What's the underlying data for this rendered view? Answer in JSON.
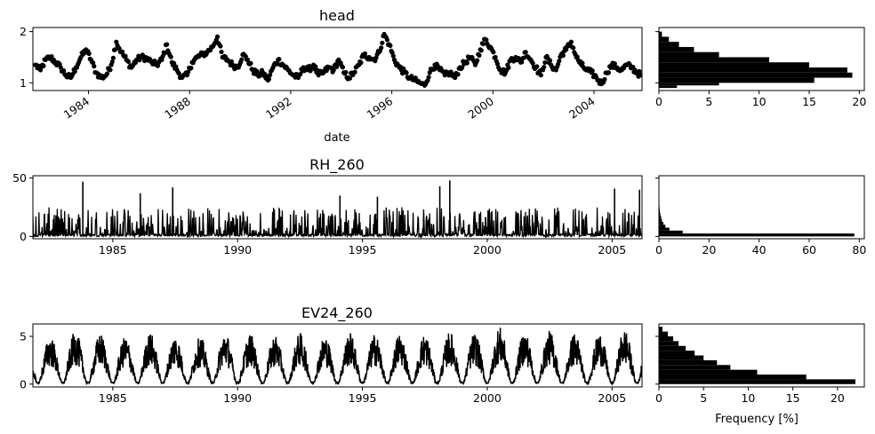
{
  "figure": {
    "axis_color": "#000000",
    "data_color": "#000000",
    "background": "#ffffff"
  },
  "chart_data": [
    {
      "type": "scatter",
      "title": "head",
      "xlabel": "date",
      "ylabel": "",
      "x_unit": "year",
      "xlim": [
        1981.8,
        2005.9
      ],
      "ylim": [
        0.85,
        2.08
      ],
      "xticks": [
        1984,
        1988,
        1992,
        1996,
        2000,
        2004
      ],
      "xtick_labels": [
        "1984",
        "1988",
        "1992",
        "1996",
        "2000",
        "2004"
      ],
      "xtick_rotation": 35,
      "yticks": [
        1,
        2
      ],
      "ytick_labels": [
        "1",
        "2"
      ],
      "marker": "circle",
      "series": [
        {
          "x": [
            1981.9,
            1982.1,
            1982.3,
            1982.5,
            1982.7,
            1982.9,
            1983.1,
            1983.3,
            1983.5,
            1983.7,
            1983.9,
            1984.1,
            1984.3,
            1984.5,
            1984.7,
            1984.9,
            1985.1,
            1985.3,
            1985.5,
            1985.7,
            1985.9,
            1986.1,
            1986.3,
            1986.5,
            1986.7,
            1986.9,
            1987.1,
            1987.3,
            1987.5,
            1987.7,
            1987.9,
            1988.1,
            1988.3,
            1988.5,
            1988.7,
            1988.9,
            1989.1,
            1989.3,
            1989.5,
            1989.7,
            1989.9,
            1990.1,
            1990.3,
            1990.5,
            1990.7,
            1990.9,
            1991.1,
            1991.3,
            1991.5,
            1991.7,
            1991.9,
            1992.1,
            1992.3,
            1992.5,
            1992.7,
            1992.9,
            1993.1,
            1993.3,
            1993.5,
            1993.7,
            1993.9,
            1994.1,
            1994.3,
            1994.5,
            1994.7,
            1994.9,
            1995.1,
            1995.3,
            1995.5,
            1995.7,
            1995.9,
            1996.1,
            1996.3,
            1996.5,
            1996.7,
            1996.9,
            1997.1,
            1997.3,
            1997.5,
            1997.7,
            1997.9,
            1998.1,
            1998.3,
            1998.5,
            1998.7,
            1998.9,
            1999.1,
            1999.3,
            1999.5,
            1999.7,
            1999.9,
            2000.1,
            2000.3,
            2000.5,
            2000.7,
            2000.9,
            2001.1,
            2001.3,
            2001.5,
            2001.7,
            2001.9,
            2002.1,
            2002.3,
            2002.5,
            2002.7,
            2002.9,
            2003.1,
            2003.3,
            2003.5,
            2003.7,
            2003.9,
            2004.1,
            2004.3,
            2004.5,
            2004.7,
            2004.9,
            2005.1,
            2005.3,
            2005.5,
            2005.7,
            2005.85
          ],
          "y": [
            1.35,
            1.25,
            1.45,
            1.5,
            1.4,
            1.3,
            1.15,
            1.1,
            1.3,
            1.5,
            1.65,
            1.45,
            1.2,
            1.1,
            1.15,
            1.35,
            1.8,
            1.6,
            1.45,
            1.3,
            1.45,
            1.5,
            1.48,
            1.4,
            1.35,
            1.45,
            1.75,
            1.4,
            1.25,
            1.1,
            1.15,
            1.4,
            1.5,
            1.55,
            1.6,
            1.7,
            1.9,
            1.5,
            1.45,
            1.35,
            1.3,
            1.55,
            1.45,
            1.25,
            1.15,
            1.2,
            1.05,
            1.3,
            1.45,
            1.35,
            1.25,
            1.15,
            1.1,
            1.3,
            1.25,
            1.35,
            1.15,
            1.2,
            1.3,
            1.25,
            1.45,
            1.2,
            1.1,
            1.2,
            1.35,
            1.55,
            1.5,
            1.45,
            1.6,
            1.95,
            1.75,
            1.45,
            1.3,
            1.2,
            1.1,
            1.05,
            1.0,
            0.95,
            1.2,
            1.35,
            1.25,
            1.15,
            1.2,
            1.1,
            1.3,
            1.4,
            1.5,
            1.35,
            1.65,
            1.85,
            1.7,
            1.5,
            1.25,
            1.2,
            1.45,
            1.5,
            1.4,
            1.6,
            1.45,
            1.3,
            1.15,
            1.5,
            1.35,
            1.25,
            1.55,
            1.65,
            1.8,
            1.5,
            1.35,
            1.25,
            1.2,
            1.1,
            0.98,
            1.2,
            1.35,
            1.3,
            1.25,
            1.35,
            1.3,
            1.2,
            1.15
          ]
        }
      ]
    },
    {
      "type": "bar",
      "title": "",
      "orientation": "horizontal",
      "xlabel": "",
      "ylabel": "",
      "xlim": [
        0,
        20.5
      ],
      "ylim": [
        0.85,
        2.08
      ],
      "xticks": [
        0,
        5,
        10,
        15,
        20
      ],
      "xtick_labels": [
        "0",
        "5",
        "10",
        "15",
        "20"
      ],
      "bin_edges": [
        0.9,
        0.95,
        1.0,
        1.1,
        1.2,
        1.3,
        1.4,
        1.5,
        1.6,
        1.7,
        1.8,
        1.9,
        2.0
      ],
      "values": [
        1.8,
        6.0,
        15.5,
        19.3,
        18.8,
        15.0,
        11.0,
        6.0,
        3.5,
        2.0,
        1.0,
        0.3
      ]
    },
    {
      "type": "line",
      "title": "RH_260",
      "xlabel": "",
      "ylabel": "",
      "x_unit": "year",
      "xlim": [
        1981.8,
        2006.2
      ],
      "ylim": [
        -2,
        52
      ],
      "xticks": [
        1985,
        1990,
        1995,
        2000,
        2005
      ],
      "xtick_labels": [
        "1985",
        "1990",
        "1995",
        "2000",
        "2005"
      ],
      "yticks": [
        0,
        50
      ],
      "ytick_labels": [
        "0",
        "50"
      ],
      "series": [
        {
          "x_start": 1981.8,
          "x_end": 2006.2,
          "peaks": [
            {
              "x": 1983.8,
              "y": 47
            },
            {
              "x": 1986.1,
              "y": 37
            },
            {
              "x": 1987.4,
              "y": 42
            },
            {
              "x": 1994.1,
              "y": 35
            },
            {
              "x": 1995.6,
              "y": 34
            },
            {
              "x": 1998.1,
              "y": 43
            },
            {
              "x": 1998.5,
              "y": 48
            },
            {
              "x": 2005.1,
              "y": 41
            },
            {
              "x": 2006.1,
              "y": 40
            }
          ],
          "typical_max": 25
        }
      ]
    },
    {
      "type": "bar",
      "title": "",
      "orientation": "horizontal",
      "xlabel": "",
      "ylabel": "",
      "xlim": [
        0,
        82
      ],
      "ylim": [
        -2,
        52
      ],
      "xticks": [
        0,
        20,
        40,
        60,
        80
      ],
      "xtick_labels": [
        "0",
        "20",
        "40",
        "60",
        "80"
      ],
      "bin_edges": [
        0,
        2.5,
        5,
        7.5,
        10,
        12.5,
        15,
        17.5,
        20,
        22.5,
        25,
        27.5,
        30
      ],
      "values": [
        78,
        9.5,
        4.2,
        2.6,
        1.8,
        1.2,
        0.9,
        0.6,
        0.4,
        0.3,
        0.2,
        0.1
      ]
    },
    {
      "type": "line",
      "title": "EV24_260",
      "xlabel": "",
      "ylabel": "",
      "x_unit": "year",
      "xlim": [
        1981.8,
        2006.2
      ],
      "ylim": [
        -0.3,
        6.3
      ],
      "xticks": [
        1985,
        1990,
        1995,
        2000,
        2005
      ],
      "xtick_labels": [
        "1985",
        "1990",
        "1995",
        "2000",
        "2005"
      ],
      "yticks": [
        0,
        5
      ],
      "ytick_labels": [
        "0",
        "5"
      ],
      "series": [
        {
          "x_start": 1981.8,
          "x_end": 2006.2,
          "seasonal": true,
          "annual_peaks": [
            5.3,
            5.1,
            5.6,
            5.3,
            5.0,
            5.4,
            5.2,
            5.0,
            5.5,
            5.3,
            5.2,
            5.4,
            5.1,
            5.4,
            5.3,
            5.4,
            5.3,
            5.5,
            5.4,
            6.0,
            5.6,
            5.6,
            5.4,
            5.4,
            5.8
          ],
          "winter_level": 0.2
        }
      ]
    },
    {
      "type": "bar",
      "title": "",
      "orientation": "horizontal",
      "xlabel": "Frequency [%]",
      "ylabel": "",
      "xlim": [
        0,
        23
      ],
      "ylim": [
        -0.3,
        6.3
      ],
      "xticks": [
        0,
        5,
        10,
        15,
        20
      ],
      "xtick_labels": [
        "0",
        "5",
        "10",
        "15",
        "20"
      ],
      "bin_edges": [
        0,
        0.5,
        1.0,
        1.5,
        2.0,
        2.5,
        3.0,
        3.5,
        4.0,
        4.5,
        5.0,
        5.5,
        6.0
      ],
      "values": [
        22.0,
        16.5,
        11.0,
        8.0,
        6.5,
        5.0,
        4.0,
        3.0,
        2.2,
        1.6,
        1.0,
        0.4
      ]
    }
  ]
}
